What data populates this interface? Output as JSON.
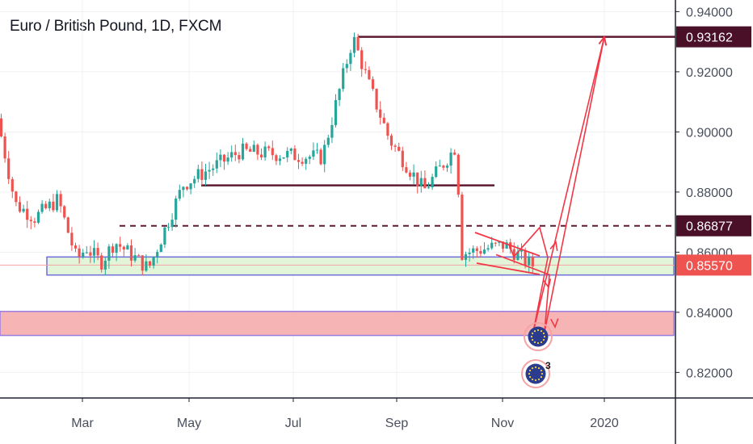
{
  "chart_data": {
    "type": "candlestick",
    "title": "Euro / British Pound, 1D, FXCM",
    "x_ticks": [
      "Mar",
      "May",
      "Jul",
      "Sep",
      "Nov",
      "2020"
    ],
    "y_ticks": [
      "0.94000",
      "0.92000",
      "0.90000",
      "0.88000",
      "0.86000",
      "0.84000",
      "0.82000"
    ],
    "ylim": [
      0.8115,
      0.9385
    ],
    "grid": true,
    "colors": {
      "up": "#26a69a",
      "down": "#ef5350",
      "drawing_red": "#f23645",
      "resistance": "#5d1a33",
      "support_zone_fill": "#e3f5d8",
      "support_zone_border": "#6f6ed9",
      "demand_zone_fill": "#f7b4b4",
      "demand_zone_border": "#9a7ee0",
      "price_line": "#f4a3a3"
    },
    "price_labels": [
      {
        "text": "0.93162",
        "value": 0.93162,
        "bg": "#4a1028",
        "fg": "#ffffff"
      },
      {
        "text": "0.86877",
        "value": 0.86877,
        "bg": "#4a1028",
        "fg": "#ffffff"
      },
      {
        "text": "0.85570",
        "value": 0.8557,
        "bg": "#ef5350",
        "fg": "#ffffff"
      }
    ],
    "levels": [
      {
        "value": 0.93162,
        "style": "solid",
        "color": "#5d1a33"
      },
      {
        "value": 0.86877,
        "style": "dashed",
        "color": "#5d1a33"
      },
      {
        "value": 0.8822,
        "style": "solid",
        "color": "#5d1a33"
      }
    ],
    "zones": [
      {
        "name": "support-zone",
        "from": 0.8524,
        "to": 0.8584,
        "fill": "#e3f5d8",
        "border": "#6f6ed9"
      },
      {
        "name": "demand-zone",
        "from": 0.8323,
        "to": 0.8403,
        "fill": "#f7b4b4",
        "border": "#9a7ee0"
      }
    ],
    "path_anchors": [
      {
        "month": "Jan",
        "value": 0.9045
      },
      {
        "month": "Jan",
        "value": 0.876
      },
      {
        "month": "Feb",
        "value": 0.8715
      },
      {
        "month": "Feb",
        "value": 0.8775
      },
      {
        "month": "Mar",
        "value": 0.8575
      },
      {
        "month": "Mar",
        "value": 0.8615
      },
      {
        "month": "Apr",
        "value": 0.8565
      },
      {
        "month": "Apr",
        "value": 0.8635
      },
      {
        "month": "May",
        "value": 0.8545
      },
      {
        "month": "Jun",
        "value": 0.8825
      },
      {
        "month": "Jul",
        "value": 0.8935
      },
      {
        "month": "Jul",
        "value": 0.8915
      },
      {
        "month": "Aug",
        "value": 0.9315
      },
      {
        "month": "Aug",
        "value": 0.9155
      },
      {
        "month": "Sep",
        "value": 0.8975
      },
      {
        "month": "Sep",
        "value": 0.8805
      },
      {
        "month": "Oct",
        "value": 0.8955
      },
      {
        "month": "Oct",
        "value": 0.8595
      },
      {
        "month": "Nov",
        "value": 0.8625
      },
      {
        "month": "Nov",
        "value": 0.8557
      }
    ],
    "projection_paths": [
      [
        [
          "Nov",
          0.8625
        ],
        [
          "Nov",
          0.8585
        ],
        [
          "Dec",
          0.8682
        ],
        [
          "Dec",
          0.8582
        ],
        [
          "Dec",
          0.8335
        ],
        [
          "2020",
          0.93162
        ]
      ],
      [
        [
          "Nov",
          0.8592
        ],
        [
          "Dec",
          0.8525
        ],
        [
          "Dec",
          0.8335
        ],
        [
          "2020",
          0.93162
        ]
      ]
    ],
    "event_badge_count": "3"
  }
}
